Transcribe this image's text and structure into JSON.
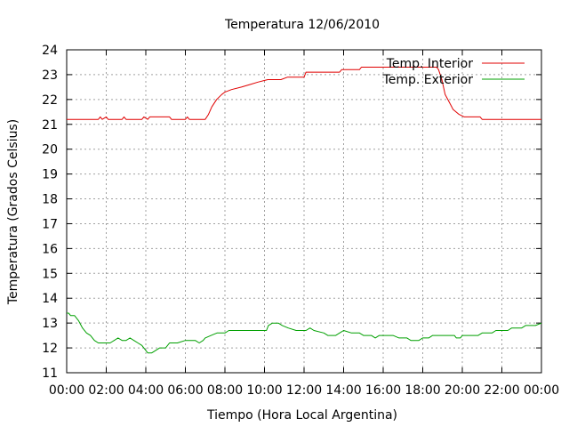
{
  "chart_data": {
    "type": "line",
    "title": "Temperatura 12/06/2010",
    "xlabel": "Tiempo (Hora Local Argentina)",
    "ylabel": "Temperatura (Grados Celsius)",
    "xlim": [
      "00:00",
      "24:00"
    ],
    "ylim": [
      11,
      24
    ],
    "x_tick_labels": [
      "00:00",
      "02:00",
      "04:00",
      "06:00",
      "08:00",
      "10:00",
      "12:00",
      "14:00",
      "16:00",
      "18:00",
      "20:00",
      "22:00",
      "00:00"
    ],
    "y_ticks": [
      11,
      12,
      13,
      14,
      15,
      16,
      17,
      18,
      19,
      20,
      21,
      22,
      23,
      24
    ],
    "grid": true,
    "legend_position": "top-right",
    "series": [
      {
        "name": "Temp. Interior",
        "color": "#e00000",
        "points": [
          [
            "00:00",
            21.2
          ],
          [
            "01:36",
            21.2
          ],
          [
            "01:42",
            21.3
          ],
          [
            "01:48",
            21.2
          ],
          [
            "02:00",
            21.3
          ],
          [
            "02:06",
            21.2
          ],
          [
            "02:48",
            21.2
          ],
          [
            "02:54",
            21.3
          ],
          [
            "03:00",
            21.2
          ],
          [
            "03:48",
            21.2
          ],
          [
            "03:54",
            21.3
          ],
          [
            "04:06",
            21.2
          ],
          [
            "04:12",
            21.3
          ],
          [
            "05:12",
            21.3
          ],
          [
            "05:18",
            21.2
          ],
          [
            "06:00",
            21.2
          ],
          [
            "06:06",
            21.3
          ],
          [
            "06:12",
            21.2
          ],
          [
            "07:00",
            21.2
          ],
          [
            "07:10",
            21.4
          ],
          [
            "07:20",
            21.7
          ],
          [
            "07:35",
            22.0
          ],
          [
            "07:50",
            22.2
          ],
          [
            "08:00",
            22.3
          ],
          [
            "08:20",
            22.4
          ],
          [
            "08:50",
            22.5
          ],
          [
            "09:15",
            22.6
          ],
          [
            "09:40",
            22.7
          ],
          [
            "10:10",
            22.8
          ],
          [
            "10:50",
            22.8
          ],
          [
            "11:10",
            22.9
          ],
          [
            "12:00",
            22.9
          ],
          [
            "12:06",
            23.1
          ],
          [
            "13:48",
            23.1
          ],
          [
            "13:54",
            23.2
          ],
          [
            "14:48",
            23.2
          ],
          [
            "14:54",
            23.3
          ],
          [
            "18:42",
            23.3
          ],
          [
            "18:48",
            23.2
          ],
          [
            "18:58",
            22.8
          ],
          [
            "19:08",
            22.2
          ],
          [
            "19:20",
            21.9
          ],
          [
            "19:32",
            21.6
          ],
          [
            "19:50",
            21.4
          ],
          [
            "20:06",
            21.3
          ],
          [
            "20:54",
            21.3
          ],
          [
            "21:00",
            21.2
          ],
          [
            "24:00",
            21.2
          ]
        ]
      },
      {
        "name": "Temp. Exterior",
        "color": "#00a000",
        "points": [
          [
            "00:00",
            13.4
          ],
          [
            "00:06",
            13.4
          ],
          [
            "00:12",
            13.3
          ],
          [
            "00:24",
            13.3
          ],
          [
            "00:36",
            13.1
          ],
          [
            "00:48",
            12.8
          ],
          [
            "01:00",
            12.6
          ],
          [
            "01:12",
            12.5
          ],
          [
            "01:24",
            12.3
          ],
          [
            "01:36",
            12.2
          ],
          [
            "01:48",
            12.2
          ],
          [
            "02:12",
            12.2
          ],
          [
            "02:24",
            12.3
          ],
          [
            "02:36",
            12.4
          ],
          [
            "02:48",
            12.3
          ],
          [
            "03:00",
            12.3
          ],
          [
            "03:12",
            12.4
          ],
          [
            "03:24",
            12.3
          ],
          [
            "03:36",
            12.2
          ],
          [
            "03:48",
            12.1
          ],
          [
            "04:00",
            11.9
          ],
          [
            "04:06",
            11.8
          ],
          [
            "04:18",
            11.8
          ],
          [
            "04:30",
            11.9
          ],
          [
            "04:42",
            12.0
          ],
          [
            "05:00",
            12.0
          ],
          [
            "05:12",
            12.2
          ],
          [
            "05:24",
            12.2
          ],
          [
            "05:36",
            12.2
          ],
          [
            "06:00",
            12.3
          ],
          [
            "06:30",
            12.3
          ],
          [
            "06:42",
            12.2
          ],
          [
            "06:54",
            12.3
          ],
          [
            "07:00",
            12.4
          ],
          [
            "07:18",
            12.5
          ],
          [
            "07:36",
            12.6
          ],
          [
            "08:00",
            12.6
          ],
          [
            "08:12",
            12.7
          ],
          [
            "10:06",
            12.7
          ],
          [
            "10:12",
            12.9
          ],
          [
            "10:24",
            13.0
          ],
          [
            "10:42",
            13.0
          ],
          [
            "10:54",
            12.9
          ],
          [
            "11:12",
            12.8
          ],
          [
            "11:36",
            12.7
          ],
          [
            "12:06",
            12.7
          ],
          [
            "12:18",
            12.8
          ],
          [
            "12:30",
            12.7
          ],
          [
            "13:00",
            12.6
          ],
          [
            "13:12",
            12.5
          ],
          [
            "13:36",
            12.5
          ],
          [
            "13:48",
            12.6
          ],
          [
            "14:00",
            12.7
          ],
          [
            "14:24",
            12.6
          ],
          [
            "14:48",
            12.6
          ],
          [
            "15:00",
            12.5
          ],
          [
            "15:24",
            12.5
          ],
          [
            "15:36",
            12.4
          ],
          [
            "15:48",
            12.5
          ],
          [
            "16:30",
            12.5
          ],
          [
            "16:48",
            12.4
          ],
          [
            "17:12",
            12.4
          ],
          [
            "17:24",
            12.3
          ],
          [
            "17:48",
            12.3
          ],
          [
            "18:00",
            12.4
          ],
          [
            "18:18",
            12.4
          ],
          [
            "18:30",
            12.5
          ],
          [
            "19:36",
            12.5
          ],
          [
            "19:42",
            12.4
          ],
          [
            "19:54",
            12.4
          ],
          [
            "20:00",
            12.5
          ],
          [
            "20:48",
            12.5
          ],
          [
            "21:00",
            12.6
          ],
          [
            "21:30",
            12.6
          ],
          [
            "21:42",
            12.7
          ],
          [
            "22:18",
            12.7
          ],
          [
            "22:30",
            12.8
          ],
          [
            "23:00",
            12.8
          ],
          [
            "23:12",
            12.9
          ],
          [
            "23:42",
            12.9
          ],
          [
            "24:00",
            13.0
          ]
        ]
      }
    ]
  }
}
